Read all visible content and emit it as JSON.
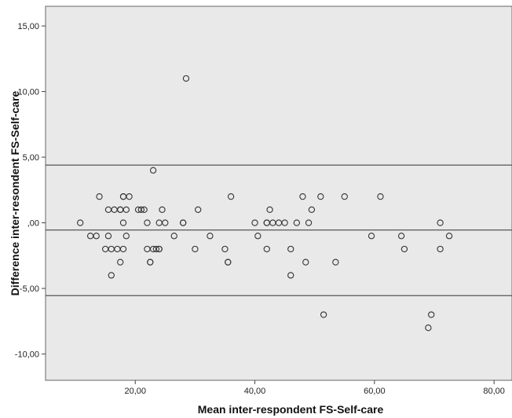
{
  "chart_data": {
    "type": "scatter",
    "title": "",
    "xlabel": "Mean inter-respondent FS-Self-care",
    "ylabel": "Difference inter-resondent FS-Self-care",
    "xlim": [
      5,
      83
    ],
    "ylim": [
      -12,
      16.5
    ],
    "x_ticks": [
      {
        "value": 20,
        "label": "20,00"
      },
      {
        "value": 40,
        "label": "40,00"
      },
      {
        "value": 60,
        "label": "60,00"
      },
      {
        "value": 80,
        "label": "80,00"
      }
    ],
    "y_ticks": [
      {
        "value": 15,
        "label": "15,00"
      },
      {
        "value": 10,
        "label": "10,00"
      },
      {
        "value": 5,
        "label": "5,00"
      },
      {
        "value": 0,
        "label": ",00"
      },
      {
        "value": -5,
        "label": "-5,00"
      },
      {
        "value": -10,
        "label": "-10,00"
      }
    ],
    "reference_lines": [
      4.4,
      -0.55,
      -5.55
    ],
    "grid": false,
    "background": "#e9e9e9",
    "marker_color": "#333333",
    "line_color": "#555555",
    "points": [
      [
        10.8,
        0
      ],
      [
        12.5,
        -1
      ],
      [
        13.5,
        -1
      ],
      [
        14,
        2
      ],
      [
        15.5,
        1
      ],
      [
        15.5,
        -1
      ],
      [
        15,
        -2
      ],
      [
        16,
        -2
      ],
      [
        16,
        -4
      ],
      [
        16.5,
        1
      ],
      [
        17,
        -2
      ],
      [
        17.5,
        1
      ],
      [
        17.5,
        -3
      ],
      [
        17.5,
        1
      ],
      [
        18,
        2
      ],
      [
        18,
        2
      ],
      [
        18,
        0
      ],
      [
        18,
        -2
      ],
      [
        18.5,
        -1
      ],
      [
        18.5,
        1
      ],
      [
        19,
        2
      ],
      [
        20.5,
        1
      ],
      [
        21,
        1
      ],
      [
        21.5,
        1
      ],
      [
        22,
        0
      ],
      [
        22,
        -2
      ],
      [
        22.5,
        -3
      ],
      [
        22.5,
        -3
      ],
      [
        23,
        4
      ],
      [
        23,
        -2
      ],
      [
        23.5,
        -2
      ],
      [
        24,
        0
      ],
      [
        24,
        -2
      ],
      [
        24,
        -2
      ],
      [
        24.5,
        1
      ],
      [
        25,
        0
      ],
      [
        26.5,
        -1
      ],
      [
        28,
        0
      ],
      [
        28,
        0
      ],
      [
        28.5,
        11
      ],
      [
        30,
        -2
      ],
      [
        30.5,
        1
      ],
      [
        32.5,
        -1
      ],
      [
        35,
        -2
      ],
      [
        35.5,
        -3
      ],
      [
        35.5,
        -3
      ],
      [
        36,
        2
      ],
      [
        40,
        0
      ],
      [
        40.5,
        -1
      ],
      [
        42,
        0
      ],
      [
        42,
        0
      ],
      [
        42,
        -2
      ],
      [
        42.5,
        1
      ],
      [
        43,
        0
      ],
      [
        44,
        0
      ],
      [
        45,
        0
      ],
      [
        46,
        -2
      ],
      [
        46,
        -4
      ],
      [
        47,
        0
      ],
      [
        48,
        2
      ],
      [
        48.5,
        -3
      ],
      [
        49,
        0
      ],
      [
        49.5,
        1
      ],
      [
        51,
        2
      ],
      [
        51.5,
        -7
      ],
      [
        53.5,
        -3
      ],
      [
        55,
        2
      ],
      [
        59.5,
        -1
      ],
      [
        61,
        2
      ],
      [
        64.5,
        -1
      ],
      [
        65,
        -2
      ],
      [
        69,
        -8
      ],
      [
        69.5,
        -7
      ],
      [
        71,
        0
      ],
      [
        71,
        -2
      ],
      [
        72.5,
        -1
      ]
    ]
  }
}
